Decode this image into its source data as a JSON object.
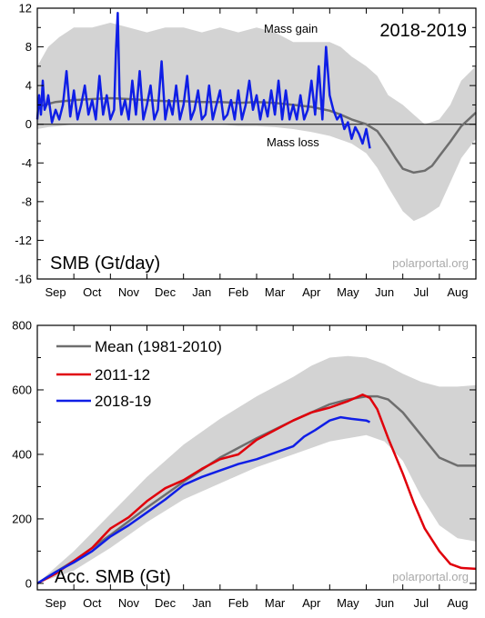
{
  "colors": {
    "envelope": "#d3d3d3",
    "mean": "#6e6e6e",
    "year_2011_12": "#e0000b",
    "year_2018_19": "#0f1ee6",
    "credit": "#a9a9a9"
  },
  "chart_data": [
    {
      "type": "line",
      "panel_label": "SMB (Gt/day)",
      "season_label": "2018-2019",
      "annotations": [
        "Mass gain",
        "Mass loss"
      ],
      "credit": "polarportal.org",
      "months": [
        "Sep",
        "Oct",
        "Nov",
        "Dec",
        "Jan",
        "Feb",
        "Mar",
        "Apr",
        "May",
        "Jun",
        "Jul",
        "Aug"
      ],
      "xlim": [
        0,
        12
      ],
      "ylim": [
        -16,
        12
      ],
      "yticks": [
        -16,
        -12,
        -8,
        -4,
        0,
        4,
        8,
        12
      ],
      "zero_line": true,
      "series": [
        {
          "role": "envelope",
          "x": [
            0,
            0.3,
            0.6,
            1,
            1.5,
            2,
            2.5,
            3,
            3.5,
            4,
            4.5,
            5,
            5.5,
            6,
            6.5,
            7,
            7.5,
            8,
            8.3,
            8.6,
            9,
            9.3,
            9.6,
            10,
            10.3,
            10.6,
            11,
            11.3,
            11.6,
            12
          ],
          "upper": [
            6,
            8,
            9,
            10,
            10,
            10.5,
            10,
            9.5,
            10,
            10,
            9.5,
            10,
            9.5,
            10,
            9.5,
            8.5,
            8.5,
            8.5,
            8,
            7,
            6,
            5,
            3,
            2,
            1,
            0,
            0.5,
            2,
            4.5,
            6
          ],
          "lower": [
            -0.5,
            -0.3,
            -0.2,
            0,
            0,
            0,
            0,
            0,
            0,
            0,
            0,
            0,
            -0.2,
            -0.2,
            -0.3,
            -0.5,
            -0.8,
            -1.2,
            -1.6,
            -2,
            -3,
            -4.5,
            -6.5,
            -9,
            -10,
            -9.5,
            -8.5,
            -6,
            -3.5,
            -1.5
          ]
        },
        {
          "name": "Mean (1981-2010)",
          "x": [
            0,
            0.5,
            1,
            1.5,
            2,
            2.5,
            3,
            3.5,
            4,
            4.5,
            5,
            5.5,
            6,
            6.5,
            7,
            7.5,
            8,
            8.3,
            8.6,
            9,
            9.3,
            9.6,
            9.8,
            10,
            10.3,
            10.6,
            10.8,
            11,
            11.3,
            11.6,
            12
          ],
          "y": [
            1.8,
            2.3,
            2.5,
            2.6,
            2.7,
            2.6,
            2.5,
            2.4,
            2.4,
            2.3,
            2.3,
            2.2,
            2.3,
            2.2,
            2.0,
            1.8,
            1.4,
            1.0,
            0.5,
            0,
            -0.7,
            -2.3,
            -3.5,
            -4.6,
            -5.0,
            -4.8,
            -4.3,
            -3.3,
            -1.8,
            -0.2,
            1.2
          ]
        },
        {
          "name": "2018-19",
          "x": [
            0,
            0.05,
            0.1,
            0.15,
            0.2,
            0.25,
            0.3,
            0.4,
            0.5,
            0.6,
            0.7,
            0.8,
            0.9,
            1.0,
            1.1,
            1.2,
            1.3,
            1.4,
            1.5,
            1.6,
            1.7,
            1.8,
            1.9,
            2.0,
            2.1,
            2.15,
            2.2,
            2.25,
            2.3,
            2.4,
            2.5,
            2.6,
            2.7,
            2.8,
            2.9,
            3.0,
            3.1,
            3.2,
            3.3,
            3.4,
            3.5,
            3.6,
            3.7,
            3.8,
            3.9,
            4.0,
            4.1,
            4.2,
            4.3,
            4.4,
            4.5,
            4.6,
            4.7,
            4.8,
            4.9,
            5.0,
            5.1,
            5.2,
            5.3,
            5.4,
            5.5,
            5.6,
            5.7,
            5.8,
            5.9,
            6.0,
            6.1,
            6.2,
            6.3,
            6.4,
            6.5,
            6.6,
            6.7,
            6.8,
            6.9,
            7.0,
            7.1,
            7.2,
            7.3,
            7.4,
            7.5,
            7.6,
            7.7,
            7.8,
            7.9,
            8.0,
            8.1,
            8.2,
            8.3,
            8.4,
            8.5,
            8.6,
            8.7,
            8.8,
            8.9,
            9.0,
            9.1
          ],
          "y": [
            0.5,
            3.0,
            1.0,
            4.5,
            1.5,
            2.0,
            3.0,
            0.2,
            1.5,
            0.5,
            2.0,
            5.5,
            0.8,
            3.5,
            0.5,
            2.0,
            4.0,
            1.0,
            2.5,
            0.5,
            5.0,
            1.0,
            3.0,
            0.5,
            1.5,
            7.5,
            11.5,
            3.0,
            1.0,
            2.5,
            0.5,
            4.5,
            1.0,
            5.5,
            0.5,
            2.0,
            4.0,
            0.5,
            1.5,
            6.5,
            0.5,
            2.5,
            1.0,
            4.0,
            0.5,
            2.0,
            5.0,
            0.5,
            1.5,
            3.5,
            0.5,
            1.0,
            4.0,
            0.5,
            2.0,
            3.5,
            0.5,
            1.0,
            2.5,
            0.5,
            3.5,
            0.5,
            2.0,
            4.5,
            1.5,
            3.0,
            0.5,
            2.5,
            0.8,
            3.5,
            1.0,
            4.5,
            0.5,
            3.5,
            0.5,
            2.0,
            0.5,
            3.0,
            0.5,
            1.5,
            4.5,
            1.0,
            6.0,
            0.5,
            8.0,
            3.0,
            1.5,
            0.5,
            1.0,
            -0.5,
            0.2,
            -1.5,
            -0.3,
            -1.0,
            -2.0,
            -0.5,
            -2.5
          ]
        }
      ]
    },
    {
      "type": "line",
      "panel_label": "Acc. SMB (Gt)",
      "credit": "polarportal.org",
      "months": [
        "Sep",
        "Oct",
        "Nov",
        "Dec",
        "Jan",
        "Feb",
        "Mar",
        "Apr",
        "May",
        "Jun",
        "Jul",
        "Aug"
      ],
      "xlim": [
        0,
        12
      ],
      "ylim": [
        -20,
        800
      ],
      "yticks": [
        0,
        200,
        400,
        600,
        800
      ],
      "legend_position": "top-left",
      "series": [
        {
          "role": "envelope",
          "x": [
            0,
            1,
            2,
            3,
            4,
            5,
            6,
            7,
            7.5,
            8,
            8.5,
            9,
            9.5,
            10,
            10.5,
            11,
            11.5,
            12
          ],
          "upper": [
            0,
            100,
            215,
            330,
            430,
            510,
            580,
            640,
            675,
            700,
            705,
            700,
            680,
            650,
            625,
            610,
            610,
            615
          ],
          "lower": [
            0,
            40,
            110,
            190,
            260,
            310,
            360,
            400,
            420,
            440,
            450,
            460,
            440,
            380,
            270,
            180,
            140,
            130
          ]
        },
        {
          "name": "Mean (1981-2010)",
          "x": [
            0,
            1,
            2,
            3,
            4,
            5,
            6,
            7,
            7.5,
            8,
            8.5,
            9,
            9.3,
            9.6,
            10,
            10.5,
            11,
            11.5,
            12
          ],
          "y": [
            0,
            70,
            150,
            235,
            315,
            390,
            450,
            505,
            530,
            555,
            570,
            580,
            580,
            570,
            530,
            460,
            390,
            365,
            365
          ]
        },
        {
          "name": "2011-12",
          "x": [
            0,
            0.5,
            1,
            1.5,
            2,
            2.5,
            3,
            3.5,
            4,
            4.5,
            5,
            5.5,
            6,
            6.5,
            7,
            7.5,
            8,
            8.5,
            8.9,
            9.1,
            9.3,
            9.6,
            10,
            10.3,
            10.6,
            11,
            11.3,
            11.6,
            12
          ],
          "y": [
            0,
            30,
            70,
            110,
            170,
            205,
            255,
            295,
            320,
            355,
            385,
            400,
            445,
            475,
            505,
            530,
            545,
            565,
            585,
            575,
            540,
            450,
            340,
            250,
            170,
            100,
            60,
            48,
            45
          ]
        },
        {
          "name": "2018-19",
          "x": [
            0,
            0.5,
            1,
            1.5,
            2,
            2.5,
            3,
            3.5,
            4,
            4.5,
            5,
            5.5,
            6,
            6.5,
            7,
            7.3,
            7.6,
            8,
            8.3,
            8.6,
            9.0,
            9.1
          ],
          "y": [
            0,
            35,
            65,
            100,
            145,
            180,
            220,
            260,
            305,
            330,
            350,
            370,
            385,
            405,
            425,
            455,
            475,
            505,
            515,
            510,
            505,
            500
          ]
        }
      ]
    }
  ]
}
